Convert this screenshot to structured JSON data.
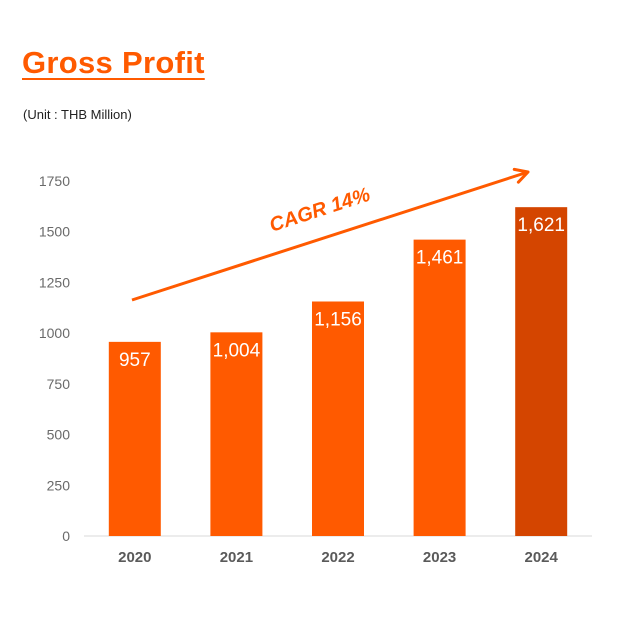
{
  "colors": {
    "accent": "#ff5a00",
    "highlight_bar": "#d44500",
    "axis": "#d9d9d9",
    "tick_text": "#6a6a6a"
  },
  "chart_data": {
    "type": "bar",
    "title": "Gross Profit",
    "subtitle": "(Unit : THB Million)",
    "categories": [
      "2020",
      "2021",
      "2022",
      "2023",
      "2024"
    ],
    "values": [
      957,
      1004,
      1156,
      1461,
      1621
    ],
    "data_labels": [
      "957",
      "1,004",
      "1,156",
      "1,461",
      "1,621"
    ],
    "highlighted_category": "2024",
    "ylim": [
      0,
      1750
    ],
    "yticks": [
      0,
      250,
      500,
      750,
      1000,
      1250,
      1500,
      1750
    ],
    "grid": false,
    "legend": "none",
    "annotation": {
      "text": "CAGR 14%",
      "type": "trend-arrow"
    }
  }
}
